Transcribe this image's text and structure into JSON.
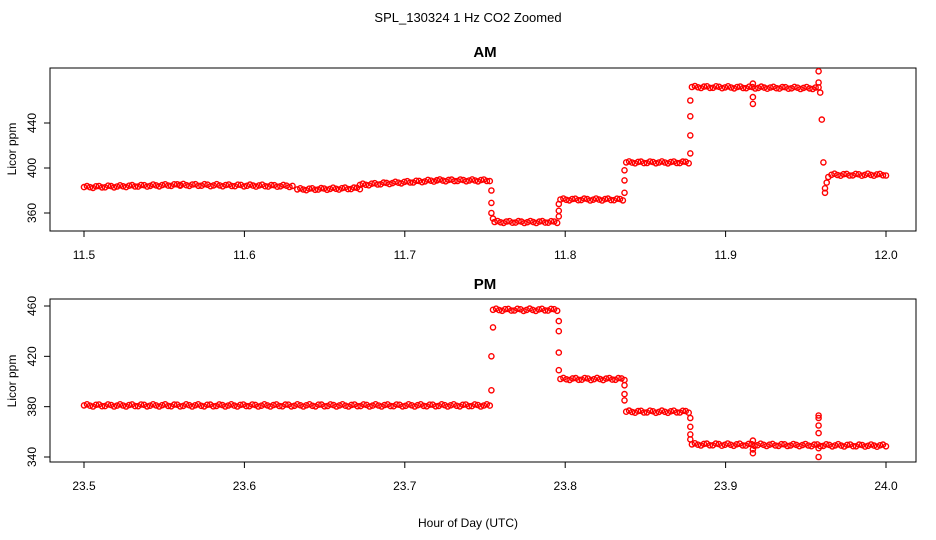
{
  "figure": {
    "title": "SPL_130324  1 Hz CO2 Zoomed",
    "xlabel": "Hour of Day (UTC)",
    "point_color": "#ff0000"
  },
  "chart_data": [
    {
      "type": "scatter",
      "title": "AM",
      "xlabel": "Hour of Day (UTC)",
      "ylabel": "Licor ppm",
      "xlim": [
        11.5,
        12.0
      ],
      "ylim": [
        345,
        487
      ],
      "xticks": [
        11.5,
        11.6,
        11.7,
        11.8,
        11.9,
        12.0
      ],
      "xtick_labels": [
        "11.5",
        "11.6",
        "11.7",
        "11.8",
        "11.9",
        "12.0"
      ],
      "yticks": [
        360,
        400,
        440
      ],
      "ytick_labels": [
        "360",
        "400",
        "440"
      ],
      "grid": false,
      "series": [
        {
          "name": "CO2",
          "segments": [
            {
              "x": [
                11.5,
                11.56
              ],
              "y": [
                383,
                385
              ]
            },
            {
              "x": [
                11.56,
                11.63
              ],
              "y": [
                385,
                384
              ]
            },
            {
              "x": [
                11.633,
                11.672
              ],
              "y": [
                381,
                382
              ]
            },
            {
              "x": [
                11.672,
                11.72
              ],
              "y": [
                385,
                389
              ]
            },
            {
              "x": [
                11.72,
                11.753
              ],
              "y": [
                389,
                389
              ]
            },
            {
              "x": [
                11.756,
                11.795
              ],
              "y": [
                352,
                352
              ]
            },
            {
              "x": [
                11.797,
                11.836
              ],
              "y": [
                372,
                372
              ]
            },
            {
              "x": [
                11.838,
                11.877
              ],
              "y": [
                405,
                405
              ]
            },
            {
              "x": [
                11.879,
                11.958
              ],
              "y": [
                472,
                471
              ]
            },
            {
              "x": [
                11.966,
                12.0
              ],
              "y": [
                394,
                394
              ]
            }
          ],
          "points": [
            {
              "x": 11.754,
              "y": 380
            },
            {
              "x": 11.754,
              "y": 369
            },
            {
              "x": 11.754,
              "y": 360
            },
            {
              "x": 11.755,
              "y": 355
            },
            {
              "x": 11.796,
              "y": 357
            },
            {
              "x": 11.796,
              "y": 362
            },
            {
              "x": 11.796,
              "y": 368
            },
            {
              "x": 11.837,
              "y": 378
            },
            {
              "x": 11.837,
              "y": 389
            },
            {
              "x": 11.837,
              "y": 398
            },
            {
              "x": 11.878,
              "y": 413
            },
            {
              "x": 11.878,
              "y": 429
            },
            {
              "x": 11.878,
              "y": 446
            },
            {
              "x": 11.878,
              "y": 460
            },
            {
              "x": 11.917,
              "y": 463
            },
            {
              "x": 11.917,
              "y": 457
            },
            {
              "x": 11.917,
              "y": 475
            },
            {
              "x": 11.958,
              "y": 486
            },
            {
              "x": 11.958,
              "y": 476
            },
            {
              "x": 11.959,
              "y": 467
            },
            {
              "x": 11.96,
              "y": 443
            },
            {
              "x": 11.961,
              "y": 405
            },
            {
              "x": 11.962,
              "y": 378
            },
            {
              "x": 11.962,
              "y": 382
            },
            {
              "x": 11.963,
              "y": 387
            },
            {
              "x": 11.964,
              "y": 392
            }
          ]
        }
      ]
    },
    {
      "type": "scatter",
      "title": "PM",
      "xlabel": "Hour of Day (UTC)",
      "ylabel": "Licor ppm",
      "xlim": [
        23.5,
        24.0
      ],
      "ylim": [
        337,
        464
      ],
      "xticks": [
        23.5,
        23.6,
        23.7,
        23.8,
        23.9,
        24.0
      ],
      "xtick_labels": [
        "23.5",
        "23.6",
        "23.7",
        "23.8",
        "23.9",
        "24.0"
      ],
      "yticks": [
        340,
        380,
        420,
        460
      ],
      "ytick_labels": [
        "340",
        "380",
        "420",
        "460"
      ],
      "grid": false,
      "series": [
        {
          "name": "CO2",
          "segments": [
            {
              "x": [
                23.5,
                23.753
              ],
              "y": [
                381,
                381
              ]
            },
            {
              "x": [
                23.755,
                23.795
              ],
              "y": [
                457,
                457
              ]
            },
            {
              "x": [
                23.797,
                23.837
              ],
              "y": [
                402,
                402
              ]
            },
            {
              "x": [
                23.838,
                23.877
              ],
              "y": [
                376,
                376
              ]
            },
            {
              "x": [
                23.879,
                24.0
              ],
              "y": [
                350,
                349
              ]
            }
          ],
          "points": [
            {
              "x": 23.754,
              "y": 393
            },
            {
              "x": 23.754,
              "y": 420
            },
            {
              "x": 23.755,
              "y": 443
            },
            {
              "x": 23.796,
              "y": 448
            },
            {
              "x": 23.796,
              "y": 440
            },
            {
              "x": 23.796,
              "y": 423
            },
            {
              "x": 23.796,
              "y": 409
            },
            {
              "x": 23.837,
              "y": 397
            },
            {
              "x": 23.837,
              "y": 390
            },
            {
              "x": 23.837,
              "y": 385
            },
            {
              "x": 23.878,
              "y": 371
            },
            {
              "x": 23.878,
              "y": 364
            },
            {
              "x": 23.878,
              "y": 358
            },
            {
              "x": 23.878,
              "y": 354
            },
            {
              "x": 23.917,
              "y": 353
            },
            {
              "x": 23.917,
              "y": 346
            },
            {
              "x": 23.917,
              "y": 343
            },
            {
              "x": 23.958,
              "y": 373
            },
            {
              "x": 23.958,
              "y": 371
            },
            {
              "x": 23.958,
              "y": 365
            },
            {
              "x": 23.958,
              "y": 359
            },
            {
              "x": 23.958,
              "y": 347
            },
            {
              "x": 23.958,
              "y": 340
            }
          ]
        }
      ]
    }
  ]
}
